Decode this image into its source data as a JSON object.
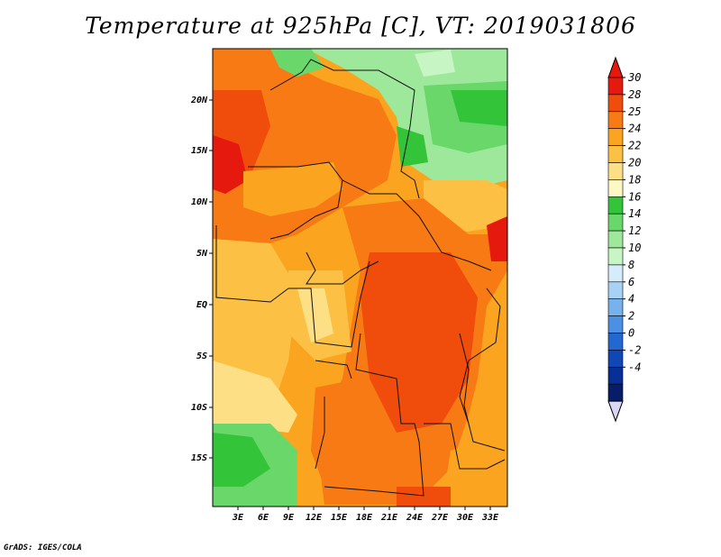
{
  "title": "Temperature at 925hPa [C], VT: 2019031806",
  "credit": "GrADS: IGES/COLA",
  "map": {
    "lat_labels": [
      "20N",
      "15N",
      "10N",
      "5N",
      "EQ",
      "5S",
      "10S",
      "15S"
    ],
    "lon_labels": [
      "3E",
      "6E",
      "9E",
      "12E",
      "15E",
      "18E",
      "21E",
      "24E",
      "27E",
      "30E",
      "33E"
    ]
  },
  "colorbar": {
    "labels": [
      "30",
      "28",
      "25",
      "24",
      "22",
      "20",
      "18",
      "16",
      "14",
      "12",
      "10",
      "8",
      "6",
      "4",
      "2",
      "0",
      "-2",
      "-4"
    ],
    "colors": [
      "#e6190e",
      "#f04c0c",
      "#f77a14",
      "#fba41f",
      "#fcc045",
      "#fde085",
      "#fdf8c4",
      "#34c43a",
      "#6ad76a",
      "#9ee89b",
      "#c8f5c4",
      "#d4ecfb",
      "#a8d2f5",
      "#78b2ec",
      "#4b90e2",
      "#2367d0",
      "#0f47b6",
      "#082f95",
      "#061d6a"
    ],
    "min_arrow_color": "#dcd6f5",
    "max_arrow_color": "#e6190e"
  }
}
